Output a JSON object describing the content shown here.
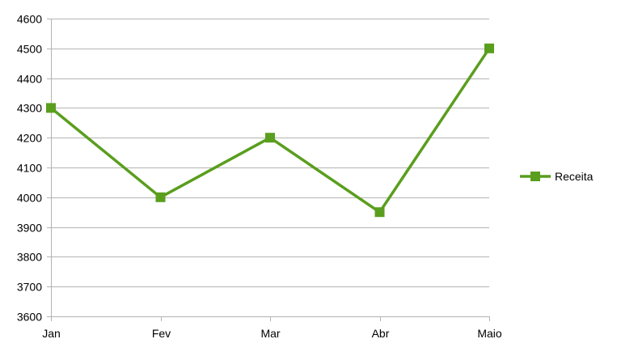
{
  "chart_data": {
    "type": "line",
    "title": "",
    "xlabel": "",
    "ylabel": "",
    "categories": [
      "Jan",
      "Fev",
      "Mar",
      "Abr",
      "Maio"
    ],
    "series": [
      {
        "name": "Receita",
        "values": [
          4300,
          4000,
          4200,
          3950,
          4500
        ],
        "color": "#5a9e1e",
        "marker": "square"
      }
    ],
    "ylim": [
      3600,
      4600
    ],
    "ytick_step": 100,
    "grid": "horizontal",
    "legend_position": "right"
  }
}
